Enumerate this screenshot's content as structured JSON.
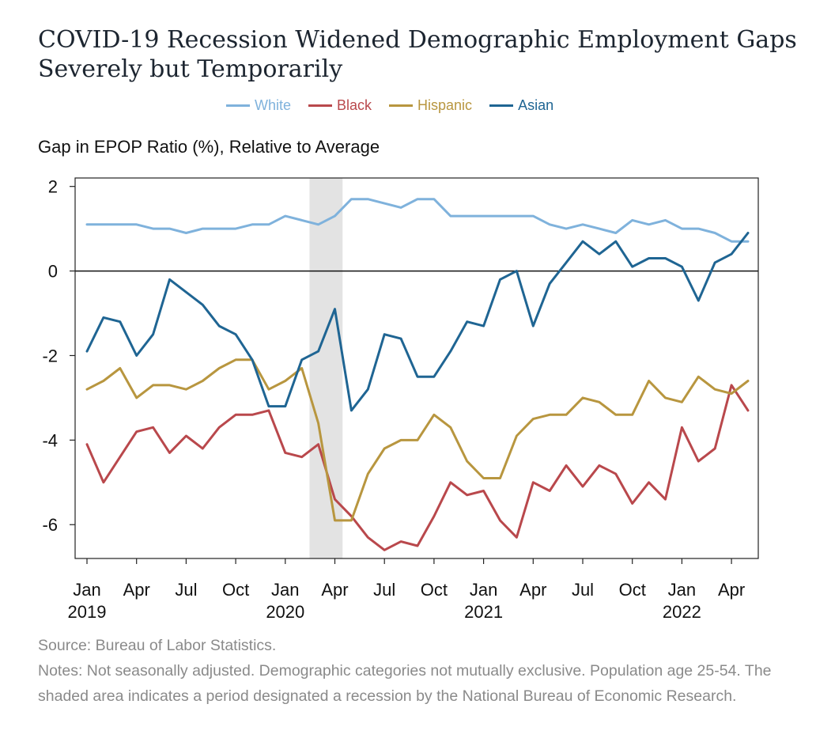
{
  "title": "COVID-19 Recession Widened Demographic Employment Gaps Severely but Temporarily",
  "source": "Source: Bureau of Labor Statistics.",
  "notes": "Notes: Not seasonally adjusted. Demographic categories not mutually exclusive. Population age 25-54. The shaded area indicates a period designated a recession by the National Bureau of Economic Research.",
  "chart_data": {
    "type": "line",
    "title": "COVID-19 Recession Widened Demographic Employment Gaps Severely but Temporarily",
    "ylabel": "Gap in EPOP Ratio (%), Relative to Average",
    "xlabel": "",
    "ylim": [
      -6.8,
      2.2
    ],
    "yticks": [
      2,
      0,
      -2,
      -4,
      -6
    ],
    "ytick_labels": [
      "2",
      "0",
      "-2",
      "-4",
      "-6"
    ],
    "zero_line": true,
    "grid": false,
    "legend_position": "top",
    "x_start": "2019-01",
    "x": [
      "2019-01",
      "2019-02",
      "2019-03",
      "2019-04",
      "2019-05",
      "2019-06",
      "2019-07",
      "2019-08",
      "2019-09",
      "2019-10",
      "2019-11",
      "2019-12",
      "2020-01",
      "2020-02",
      "2020-03",
      "2020-04",
      "2020-05",
      "2020-06",
      "2020-07",
      "2020-08",
      "2020-09",
      "2020-10",
      "2020-11",
      "2020-12",
      "2021-01",
      "2021-02",
      "2021-03",
      "2021-04",
      "2021-05",
      "2021-06",
      "2021-07",
      "2021-08",
      "2021-09",
      "2021-10",
      "2021-11",
      "2021-12",
      "2022-01",
      "2022-02",
      "2022-03",
      "2022-04",
      "2022-05"
    ],
    "xticks": [
      {
        "month": "2019-01",
        "label": "Jan",
        "year": "2019"
      },
      {
        "month": "2019-04",
        "label": "Apr",
        "year": ""
      },
      {
        "month": "2019-07",
        "label": "Jul",
        "year": ""
      },
      {
        "month": "2019-10",
        "label": "Oct",
        "year": ""
      },
      {
        "month": "2020-01",
        "label": "Jan",
        "year": "2020"
      },
      {
        "month": "2020-04",
        "label": "Apr",
        "year": ""
      },
      {
        "month": "2020-07",
        "label": "Jul",
        "year": ""
      },
      {
        "month": "2020-10",
        "label": "Oct",
        "year": ""
      },
      {
        "month": "2021-01",
        "label": "Jan",
        "year": "2021"
      },
      {
        "month": "2021-04",
        "label": "Apr",
        "year": ""
      },
      {
        "month": "2021-07",
        "label": "Jul",
        "year": ""
      },
      {
        "month": "2021-10",
        "label": "Oct",
        "year": ""
      },
      {
        "month": "2022-01",
        "label": "Jan",
        "year": "2022"
      },
      {
        "month": "2022-04",
        "label": "Apr",
        "year": ""
      }
    ],
    "recession": {
      "start": "2020-02-15",
      "end": "2020-04-15"
    },
    "series": [
      {
        "name": "White",
        "color": "#7fb2dc",
        "values": [
          1.1,
          1.1,
          1.1,
          1.1,
          1.0,
          1.0,
          0.9,
          1.0,
          1.0,
          1.0,
          1.1,
          1.1,
          1.3,
          1.2,
          1.1,
          1.3,
          1.7,
          1.7,
          1.6,
          1.5,
          1.7,
          1.7,
          1.3,
          1.3,
          1.3,
          1.3,
          1.3,
          1.3,
          1.1,
          1.0,
          1.1,
          1.0,
          0.9,
          1.2,
          1.1,
          1.2,
          1.0,
          1.0,
          0.9,
          0.7,
          0.7
        ]
      },
      {
        "name": "Black",
        "color": "#b9484c",
        "values": [
          -4.1,
          -5.0,
          -4.4,
          -3.8,
          -3.7,
          -4.3,
          -3.9,
          -4.2,
          -3.7,
          -3.4,
          -3.4,
          -3.3,
          -4.3,
          -4.4,
          -4.1,
          -5.4,
          -5.8,
          -6.3,
          -6.6,
          -6.4,
          -6.5,
          -5.8,
          -5.0,
          -5.3,
          -5.2,
          -5.9,
          -6.3,
          -5.0,
          -5.2,
          -4.6,
          -5.1,
          -4.6,
          -4.8,
          -5.5,
          -5.0,
          -5.4,
          -3.7,
          -4.5,
          -4.2,
          -2.7,
          -3.3
        ]
      },
      {
        "name": "Hispanic",
        "color": "#b8963f",
        "values": [
          -2.8,
          -2.6,
          -2.3,
          -3.0,
          -2.7,
          -2.7,
          -2.8,
          -2.6,
          -2.3,
          -2.1,
          -2.1,
          -2.8,
          -2.6,
          -2.3,
          -3.6,
          -5.9,
          -5.9,
          -4.8,
          -4.2,
          -4.0,
          -4.0,
          -3.4,
          -3.7,
          -4.5,
          -4.9,
          -4.9,
          -3.9,
          -3.5,
          -3.4,
          -3.4,
          -3.0,
          -3.1,
          -3.4,
          -3.4,
          -2.6,
          -3.0,
          -3.1,
          -2.5,
          -2.8,
          -2.9,
          -2.6
        ]
      },
      {
        "name": "Asian",
        "color": "#1f6593",
        "values": [
          -1.9,
          -1.1,
          -1.2,
          -2.0,
          -1.5,
          -0.2,
          -0.5,
          -0.8,
          -1.3,
          -1.5,
          -2.1,
          -3.2,
          -3.2,
          -2.1,
          -1.9,
          -0.9,
          -3.3,
          -2.8,
          -1.5,
          -1.6,
          -2.5,
          -2.5,
          -1.9,
          -1.2,
          -1.3,
          -0.2,
          0.0,
          -1.3,
          -0.3,
          0.2,
          0.7,
          0.4,
          0.7,
          0.1,
          0.3,
          0.3,
          0.1,
          -0.7,
          0.2,
          0.4,
          0.9
        ]
      }
    ]
  }
}
